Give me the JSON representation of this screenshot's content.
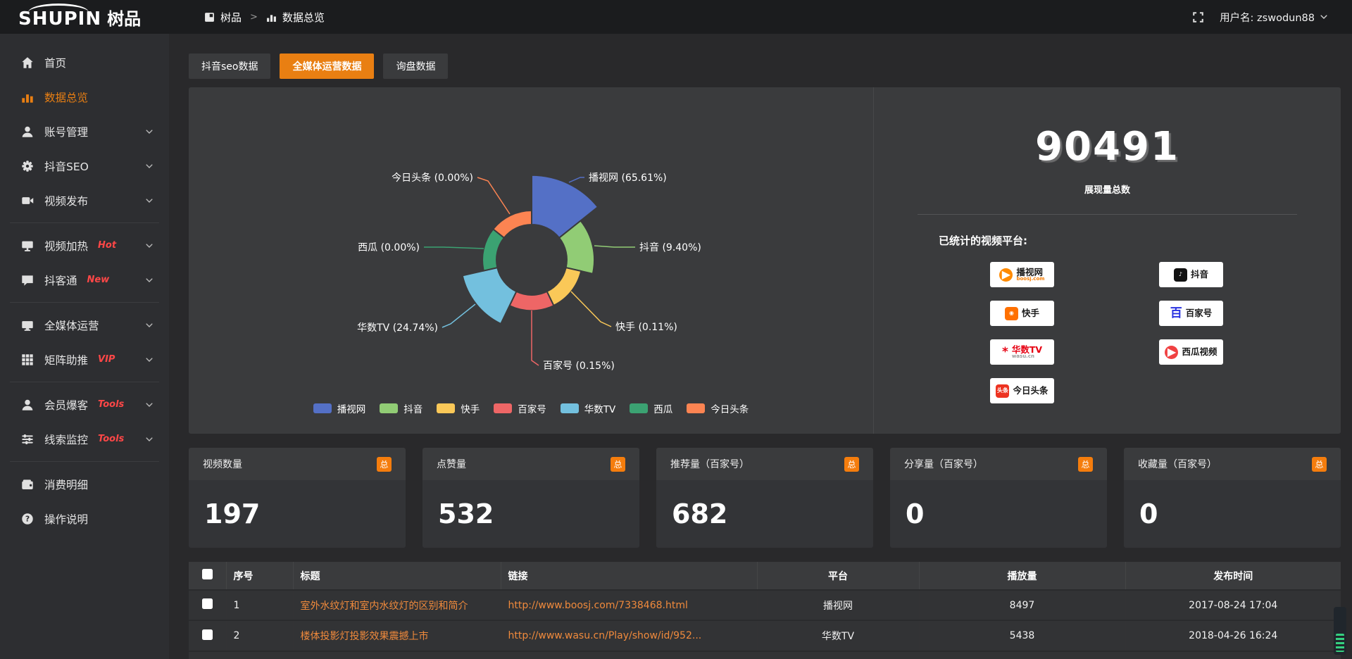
{
  "colors": {
    "accent": "#e97f12",
    "badge": "#f57d0d",
    "link": "#f08a3c",
    "tag": "#ff4747"
  },
  "topbar": {
    "logo_en": "SHUPIN",
    "logo_cn": "树品",
    "breadcrumb": {
      "root": "树品",
      "sep": ">",
      "current": "数据总览"
    },
    "user_label": "用户名: zswodun88"
  },
  "sidebar": {
    "items": [
      {
        "key": "home",
        "label": "首页",
        "icon": "home-icon",
        "icontype": "home",
        "tag": "",
        "expandable": false,
        "active": false,
        "divider_after": false
      },
      {
        "key": "data-overview",
        "label": "数据总览",
        "icon": "bar-chart-icon",
        "icontype": "chart",
        "tag": "",
        "expandable": false,
        "active": true,
        "divider_after": false
      },
      {
        "key": "account-management",
        "label": "账号管理",
        "icon": "user-icon",
        "icontype": "user",
        "tag": "",
        "expandable": true,
        "active": false,
        "divider_after": false
      },
      {
        "key": "douyin-seo",
        "label": "抖音SEO",
        "icon": "gear-icon",
        "icontype": "gear",
        "tag": "",
        "expandable": true,
        "active": false,
        "divider_after": false
      },
      {
        "key": "video-publish",
        "label": "视频发布",
        "icon": "video-icon",
        "icontype": "video",
        "tag": "",
        "expandable": true,
        "active": false,
        "divider_after": true
      },
      {
        "key": "video-heat",
        "label": "视频加热",
        "icon": "heat-icon",
        "icontype": "heat",
        "tag": "Hot",
        "expandable": true,
        "active": false,
        "divider_after": false
      },
      {
        "key": "douketong",
        "label": "抖客通",
        "icon": "chat-icon",
        "icontype": "chat",
        "tag": "New",
        "expandable": true,
        "active": false,
        "divider_after": true
      },
      {
        "key": "media-operation",
        "label": "全媒体运营",
        "icon": "monitor-icon",
        "icontype": "monitor",
        "tag": "",
        "expandable": true,
        "active": false,
        "divider_after": false
      },
      {
        "key": "matrix-boost",
        "label": "矩阵助推",
        "icon": "grid-icon",
        "icontype": "grid",
        "tag": "VIP",
        "expandable": true,
        "active": false,
        "divider_after": true
      },
      {
        "key": "member-burst",
        "label": "会员爆客",
        "icon": "member-icon",
        "icontype": "user",
        "tag": "Tools",
        "expandable": true,
        "active": false,
        "divider_after": false
      },
      {
        "key": "clue-monitor",
        "label": "线索监控",
        "icon": "sliders-icon",
        "icontype": "sliders",
        "tag": "Tools",
        "expandable": true,
        "active": false,
        "divider_after": true
      },
      {
        "key": "consumption-detail",
        "label": "消费明细",
        "icon": "wallet-icon",
        "icontype": "wallet",
        "tag": "",
        "expandable": false,
        "active": false,
        "divider_after": false
      },
      {
        "key": "instructions",
        "label": "操作说明",
        "icon": "question-icon",
        "icontype": "question",
        "tag": "",
        "expandable": false,
        "active": false,
        "divider_after": false
      }
    ]
  },
  "tabs": [
    {
      "key": "douyin-seo-data",
      "label": "抖音seo数据",
      "active": false
    },
    {
      "key": "media-operation-data",
      "label": "全媒体运营数据",
      "active": true
    },
    {
      "key": "inquiry-data",
      "label": "询盘数据",
      "active": false
    }
  ],
  "chart_data": {
    "type": "pie",
    "subtype": "nightingale-rose",
    "title": "",
    "legend_position": "bottom",
    "series": [
      {
        "name": "播视网",
        "percent": 65.61,
        "color": "#5470c6"
      },
      {
        "name": "抖音",
        "percent": 9.4,
        "color": "#91cc75"
      },
      {
        "name": "快手",
        "percent": 0.11,
        "color": "#fac858"
      },
      {
        "name": "百家号",
        "percent": 0.15,
        "color": "#ee6666"
      },
      {
        "name": "华数TV",
        "percent": 24.74,
        "color": "#73c0de"
      },
      {
        "name": "西瓜",
        "percent": 0.0,
        "color": "#3ba272"
      },
      {
        "name": "今日头条",
        "percent": 0.0,
        "color": "#fc8452"
      }
    ],
    "point_labels": [
      "播视网 (65.61%)",
      "抖音 (9.40%)",
      "快手 (0.11%)",
      "百家号 (0.15%)",
      "华数TV (24.74%)",
      "西瓜 (0.00%)",
      "今日头条 (0.00%)"
    ]
  },
  "summary": {
    "total_value": "90491",
    "total_label": "展现量总数",
    "platforms_label": "已统计的视频平台:",
    "platforms": [
      {
        "col": 0,
        "name": "播视网",
        "sub": "boosj.com",
        "sub_color": "#f57c00",
        "shape": "circle",
        "icon": "boosj-logo",
        "bg": "#ff8a00",
        "fg": "#ffffff",
        "glyph": "▶",
        "name_color": "#1a1a1a"
      },
      {
        "col": 0,
        "name": "快手",
        "sub": "",
        "sub_color": "",
        "shape": "square",
        "icon": "kuaishou-logo",
        "bg": "#ff7000",
        "fg": "#ffffff",
        "glyph": "◉",
        "name_color": "#1a1a1a"
      },
      {
        "col": 0,
        "name": "华数TV",
        "sub": "wasu.cn",
        "sub_color": "#999999",
        "shape": "text",
        "icon": "wasu-logo",
        "bg": "",
        "fg": "#e60012",
        "glyph": "*",
        "name_color": "#e60012"
      },
      {
        "col": 0,
        "name": "今日头条",
        "sub": "",
        "sub_color": "",
        "shape": "square",
        "icon": "toutiao-logo",
        "bg": "#ed3321",
        "fg": "#ffffff",
        "glyph": "头条",
        "name_color": "#1a1a1a"
      },
      {
        "col": 1,
        "name": "抖音",
        "sub": "",
        "sub_color": "",
        "shape": "square",
        "icon": "douyin-logo",
        "bg": "#121212",
        "fg": "#ffffff",
        "glyph": "♪",
        "name_color": "#1a1a1a"
      },
      {
        "col": 1,
        "name": "百家号",
        "sub": "",
        "sub_color": "",
        "shape": "text",
        "icon": "baijiahao-logo",
        "bg": "",
        "fg": "#2932e1",
        "glyph": "百",
        "name_color": "#1a1a1a"
      },
      {
        "col": 1,
        "name": "西瓜视频",
        "sub": "",
        "sub_color": "",
        "shape": "circle",
        "icon": "xigua-logo",
        "bg": "#f04142",
        "fg": "#ffffff",
        "glyph": "▶",
        "name_color": "#1a1a1a"
      }
    ]
  },
  "stat_cards": [
    {
      "label": "视频数量",
      "badge": "总",
      "value": "197"
    },
    {
      "label": "点赞量",
      "badge": "总",
      "value": "532"
    },
    {
      "label": "推荐量（百家号）",
      "badge": "总",
      "value": "682"
    },
    {
      "label": "分享量（百家号）",
      "badge": "总",
      "value": "0"
    },
    {
      "label": "收藏量（百家号）",
      "badge": "总",
      "value": "0"
    }
  ],
  "table": {
    "headers": [
      "序号",
      "标题",
      "链接",
      "平台",
      "播放量",
      "发布时间"
    ],
    "rows": [
      {
        "index": "1",
        "title": "室外水纹灯和室内水纹灯的区别和简介",
        "link": "http://www.boosj.com/7338468.html",
        "platform": "播视网",
        "plays": "8497",
        "time": "2017-08-24 17:04"
      },
      {
        "index": "2",
        "title": "楼体投影灯投影效果震撼上市",
        "link": "http://www.wasu.cn/Play/show/id/952...",
        "platform": "华数TV",
        "plays": "5438",
        "time": "2018-04-26 16:24"
      }
    ]
  }
}
